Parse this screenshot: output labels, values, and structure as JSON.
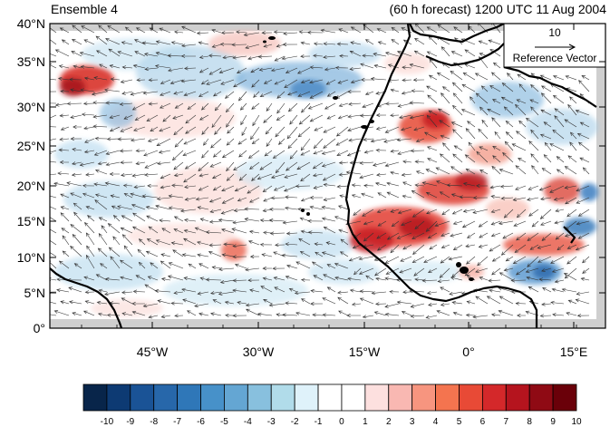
{
  "header": {
    "left_title": "Ensemble 4",
    "right_title": "(60 h forecast) 1200 UTC 11 Aug 2004"
  },
  "map": {
    "lat_labels": [
      "40°N",
      "35°N",
      "30°N",
      "25°N",
      "20°N",
      "15°N",
      "10°N",
      "5°N",
      "0°"
    ],
    "lon_labels": [
      "45°W",
      "30°W",
      "15°W",
      "0°",
      "15°E"
    ],
    "reference_vector": {
      "value": "10",
      "label": "Reference Vector"
    }
  },
  "colorbar": {
    "labels": [
      "-10",
      "-9",
      "-8",
      "-7",
      "-6",
      "-5",
      "-4",
      "-3",
      "-2",
      "-1",
      "0",
      "1",
      "2",
      "3",
      "4",
      "5",
      "6",
      "7",
      "8",
      "9",
      "10"
    ],
    "colors": [
      "#08254a",
      "#0d3a73",
      "#1a5396",
      "#2767aa",
      "#2f77b8",
      "#4791c9",
      "#64a6d3",
      "#88c0de",
      "#b1dcea",
      "#dff2fa",
      "#ffffff",
      "#ffffff",
      "#fde0df",
      "#f9b8b2",
      "#f7957f",
      "#f4744f",
      "#e84a36",
      "#d4282a",
      "#b5141e",
      "#8f0a14",
      "#6a0009"
    ]
  },
  "fields": {
    "red_color": "#e8463a",
    "blue_color": "#3a86c2",
    "land_color": "#000000",
    "edge_color": "#c8c8c8"
  }
}
